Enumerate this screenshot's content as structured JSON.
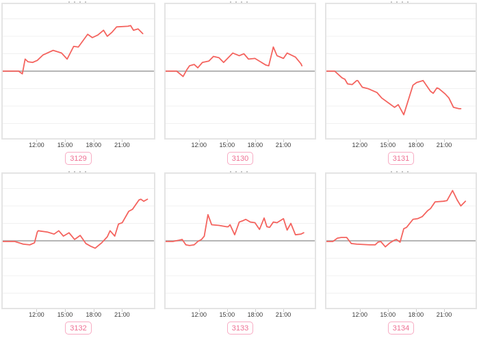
{
  "style": {
    "page_bg": "#ffffff",
    "line_color": "#f4635e",
    "zero_line_color": "#b5b5b5",
    "grid_color": "#f0f0f0",
    "box_border_color": "#e4e4e4",
    "tick_mark_color": "#cccccc",
    "tick_label_color": "#3a3a3a",
    "badge_border_color": "#f8abc3",
    "badge_text_color": "#ee7093"
  },
  "axis": {
    "x_domain_hours": [
      8.3,
      24.5
    ],
    "y_domain": [
      -100,
      100
    ],
    "x_tick_hours": [
      12,
      15,
      18,
      21
    ],
    "x_tick_labels": [
      "12:00",
      "15:00",
      "18:00",
      "21:00"
    ],
    "grid_step": 26,
    "note": "no y-axis labels shown; y values are relative units with a gray zero baseline at mid-height"
  },
  "chart_data": [
    {
      "type": "line",
      "id": "3129",
      "x_hours": [
        8.3,
        10.0,
        10.2,
        10.4,
        10.7,
        11.0,
        11.5,
        12.0,
        12.6,
        13.7,
        14.6,
        15.2,
        15.9,
        16.4,
        17.4,
        17.9,
        18.5,
        19.1,
        19.5,
        20.0,
        20.5,
        21.7,
        22.0,
        22.3,
        22.8,
        23.3
      ],
      "y_rel": [
        0,
        0,
        -2,
        -4,
        18,
        14,
        13,
        16,
        24,
        31,
        27,
        18,
        37,
        36,
        55,
        50,
        54,
        61,
        52,
        58,
        66,
        67,
        68,
        61,
        63,
        56
      ]
    },
    {
      "type": "line",
      "id": "3130",
      "x_hours": [
        8.3,
        9.5,
        10.2,
        10.6,
        10.9,
        11.4,
        11.8,
        12.3,
        13.0,
        13.5,
        14.1,
        14.6,
        15.6,
        16.3,
        16.8,
        17.3,
        18.0,
        19.2,
        19.5,
        20.0,
        20.4,
        21.1,
        21.5,
        22.4,
        23.0,
        23.1
      ],
      "y_rel": [
        0,
        0,
        -8,
        2,
        8,
        10,
        5,
        13,
        15,
        22,
        20,
        13,
        27,
        23,
        26,
        18,
        19,
        9,
        8,
        36,
        23,
        19,
        27,
        21,
        11,
        8
      ]
    },
    {
      "type": "line",
      "id": "3131",
      "x_hours": [
        8.3,
        9.2,
        10.0,
        10.3,
        10.6,
        11.1,
        11.6,
        11.7,
        12.2,
        12.8,
        13.8,
        14.3,
        15.2,
        15.7,
        16.1,
        16.7,
        17.7,
        18.1,
        18.8,
        19.6,
        19.9,
        20.3,
        20.5,
        21.2,
        21.6,
        22.1,
        22.7,
        22.9
      ],
      "y_rel": [
        0,
        0,
        -10,
        -12,
        -19,
        -20,
        -14,
        -14,
        -24,
        -26,
        -32,
        -40,
        -49,
        -54,
        -50,
        -65,
        -21,
        -17,
        -14,
        -30,
        -33,
        -25,
        -26,
        -34,
        -40,
        -54,
        -56,
        -56
      ]
    },
    {
      "type": "line",
      "id": "3132",
      "x_hours": [
        8.3,
        9.6,
        10.5,
        11.2,
        11.7,
        12.0,
        12.1,
        13.1,
        13.8,
        14.3,
        14.8,
        15.4,
        16.0,
        16.6,
        17.2,
        17.7,
        18.2,
        18.9,
        19.5,
        19.8,
        20.3,
        20.7,
        21.1,
        21.8,
        22.2,
        22.9,
        23.1,
        23.4,
        23.8
      ],
      "y_rel": [
        -1,
        -1,
        -5,
        -6,
        -3,
        13,
        15,
        13,
        10,
        15,
        7,
        12,
        2,
        8,
        -4,
        -8,
        -11,
        -3,
        6,
        15,
        7,
        25,
        27,
        44,
        47,
        61,
        62,
        59,
        62
      ]
    },
    {
      "type": "line",
      "id": "3133",
      "x_hours": [
        8.3,
        9.1,
        9.8,
        10.1,
        10.5,
        10.9,
        11.4,
        11.8,
        12.2,
        12.5,
        12.9,
        13.3,
        14.1,
        14.9,
        15.1,
        15.3,
        15.8,
        16.3,
        16.7,
        17.0,
        17.5,
        18.0,
        18.5,
        19.0,
        19.3,
        19.6,
        20.0,
        20.4,
        21.1,
        21.5,
        21.9,
        22.4,
        23.0,
        23.3
      ],
      "y_rel": [
        -1,
        -1,
        1,
        2,
        -6,
        -7,
        -6,
        -1,
        2,
        7,
        39,
        24,
        23,
        21,
        21,
        24,
        9,
        28,
        30,
        32,
        28,
        27,
        17,
        34,
        21,
        20,
        28,
        27,
        33,
        16,
        26,
        9,
        10,
        12
      ]
    },
    {
      "type": "line",
      "id": "3134",
      "x_hours": [
        8.3,
        9.0,
        9.5,
        9.9,
        10.5,
        11.0,
        11.6,
        13.0,
        13.6,
        13.9,
        14.2,
        14.7,
        15.2,
        15.7,
        15.9,
        16.3,
        16.7,
        17.0,
        17.7,
        18.2,
        18.7,
        19.3,
        19.6,
        20.1,
        21.0,
        21.4,
        22.0,
        22.5,
        22.9,
        23.4
      ],
      "y_rel": [
        -1,
        -1,
        4,
        5,
        5,
        -4,
        -5,
        -6,
        -6,
        -2,
        -1,
        -9,
        -3,
        1,
        2,
        -2,
        18,
        20,
        32,
        33,
        36,
        45,
        48,
        58,
        59,
        60,
        75,
        61,
        52,
        59
      ]
    }
  ]
}
